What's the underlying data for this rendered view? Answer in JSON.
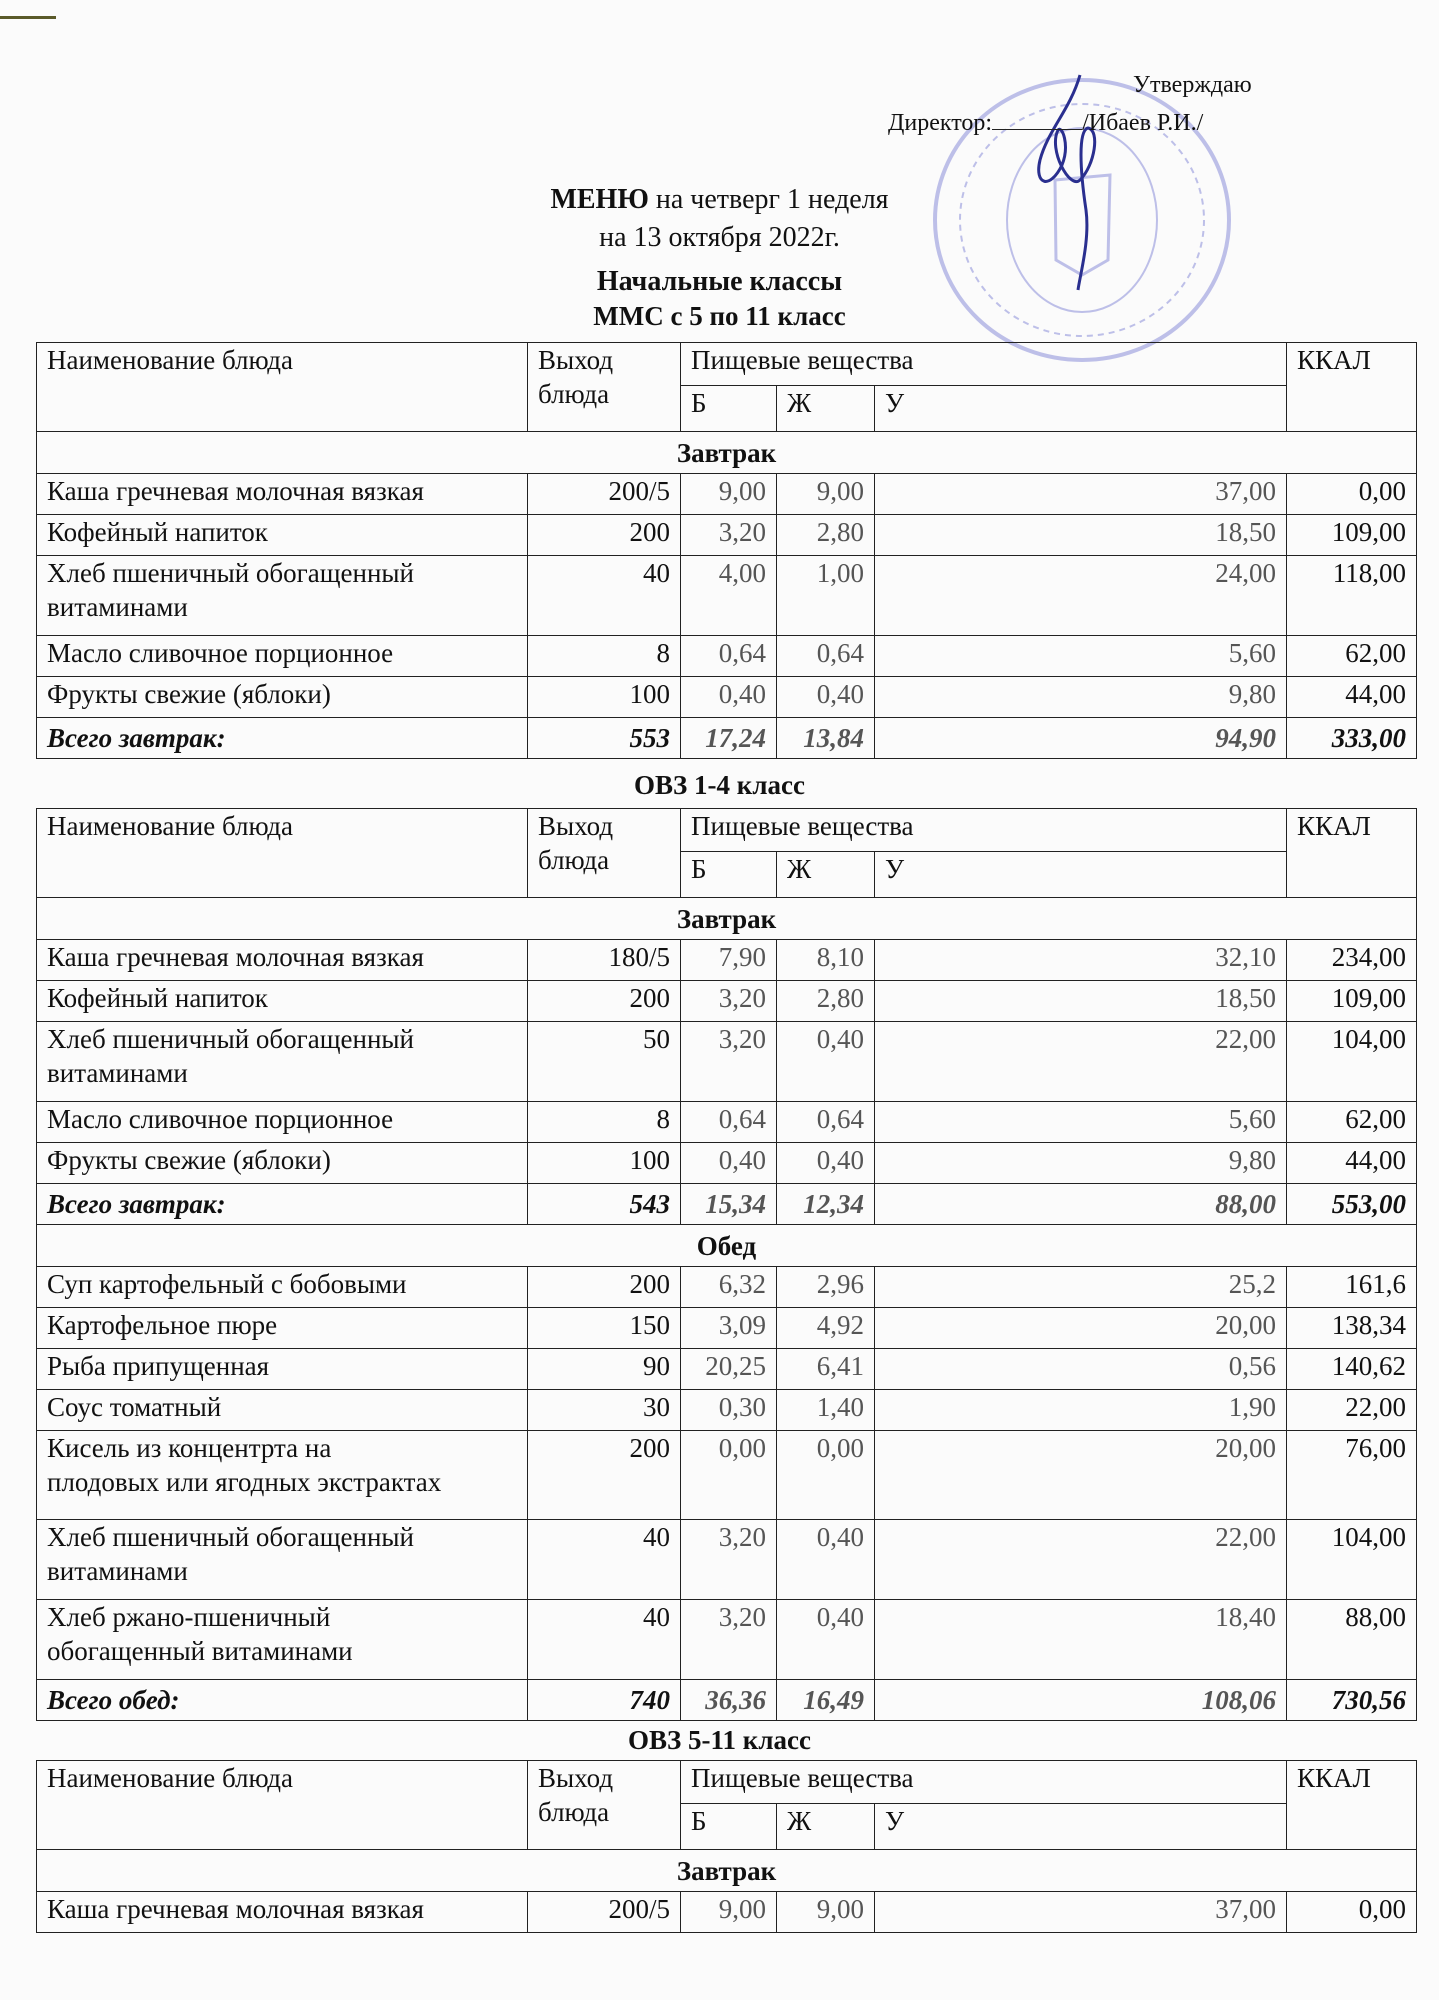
{
  "approval": {
    "approve_label": "Утверждаю",
    "director_label": "Директор:",
    "director_name": "/Ибаев Р.И./",
    "stamp_color": "#7b7fd0",
    "signature_color": "#2a2f8f"
  },
  "header": {
    "menu_bold": "МЕНЮ",
    "menu_rest": " на четверг 1 неделя",
    "date": "на 13 октября 2022г.",
    "group": "Начальные классы"
  },
  "columns": {
    "name": "Наименование блюда",
    "output": "Выход блюда",
    "nutrients": "Пищевые вещества",
    "b": "Б",
    "zh": "Ж",
    "u": "У",
    "kcal": "ККАЛ"
  },
  "sections": [
    {
      "title": "ММС с 5 по 11 класс",
      "meals": [
        {
          "label": "Завтрак",
          "rows": [
            {
              "name": "Каша гречневая молочная вязкая",
              "output": "200/5",
              "b": "9,00",
              "zh": "9,00",
              "u": "37,00",
              "kcal": "0,00"
            },
            {
              "name": "Кофейный напиток",
              "output": "200",
              "b": "3,20",
              "zh": "2,80",
              "u": "18,50",
              "kcal": "109,00"
            },
            {
              "name": "Хлеб пшеничный обогащенный\nвитаминами",
              "output": "40",
              "b": "4,00",
              "zh": "1,00",
              "u": "24,00",
              "kcal": "118,00"
            },
            {
              "name": "Масло сливочное порционное",
              "output": "8",
              "b": "0,64",
              "zh": "0,64",
              "u": "5,60",
              "kcal": "62,00"
            },
            {
              "name": "Фрукты свежие (яблоки)",
              "output": "100",
              "b": "0,40",
              "zh": "0,40",
              "u": "9,80",
              "kcal": "44,00"
            }
          ],
          "total": {
            "name": "Всего завтрак:",
            "output": "553",
            "b": "17,24",
            "zh": "13,84",
            "u": "94,90",
            "kcal": "333,00"
          }
        }
      ]
    },
    {
      "title": "ОВЗ 1-4 класс",
      "meals": [
        {
          "label": "Завтрак",
          "rows": [
            {
              "name": "Каша гречневая молочная вязкая",
              "output": "180/5",
              "b": "7,90",
              "zh": "8,10",
              "u": "32,10",
              "kcal": "234,00"
            },
            {
              "name": "Кофейный напиток",
              "output": "200",
              "b": "3,20",
              "zh": "2,80",
              "u": "18,50",
              "kcal": "109,00"
            },
            {
              "name": "Хлеб пшеничный обогащенный\nвитаминами",
              "output": "50",
              "b": "3,20",
              "zh": "0,40",
              "u": "22,00",
              "kcal": "104,00"
            },
            {
              "name": "Масло сливочное порционное",
              "output": "8",
              "b": "0,64",
              "zh": "0,64",
              "u": "5,60",
              "kcal": "62,00"
            },
            {
              "name": "Фрукты свежие (яблоки)",
              "output": "100",
              "b": "0,40",
              "zh": "0,40",
              "u": "9,80",
              "kcal": "44,00"
            }
          ],
          "total": {
            "name": "Всего завтрак:",
            "output": "543",
            "b": "15,34",
            "zh": "12,34",
            "u": "88,00",
            "kcal": "553,00"
          }
        },
        {
          "label": "Обед",
          "rows": [
            {
              "name": "Суп картофельный с бобовыми",
              "output": "200",
              "b": "6,32",
              "zh": "2,96",
              "u": "25,2",
              "kcal": "161,6"
            },
            {
              "name": "Картофельное пюре",
              "output": "150",
              "b": "3,09",
              "zh": "4,92",
              "u": "20,00",
              "kcal": "138,34"
            },
            {
              "name": "Рыба припущенная",
              "output": "90",
              "b": "20,25",
              "zh": "6,41",
              "u": "0,56",
              "kcal": "140,62"
            },
            {
              "name": "Соус томатный",
              "output": "30",
              "b": "0,30",
              "zh": "1,40",
              "u": "1,90",
              "kcal": "22,00"
            },
            {
              "name": "Кисель из концентрта на\nплодовых или ягодных экстрактах",
              "output": "200",
              "b": "0,00",
              "zh": "0,00",
              "u": "20,00",
              "kcal": "76,00"
            },
            {
              "name": "Хлеб пшеничный обогащенный\nвитаминами",
              "output": "40",
              "b": "3,20",
              "zh": "0,40",
              "u": "22,00",
              "kcal": "104,00"
            },
            {
              "name": "Хлеб ржано-пшеничный\nобогащенный витаминами",
              "output": "40",
              "b": "3,20",
              "zh": "0,40",
              "u": "18,40",
              "kcal": "88,00"
            }
          ],
          "total": {
            "name": "Всего обед:",
            "output": "740",
            "b": "36,36",
            "zh": "16,49",
            "u": "108,06",
            "kcal": "730,56"
          }
        }
      ]
    },
    {
      "title": "ОВЗ 5-11 класс",
      "meals": [
        {
          "label": "Завтрак",
          "rows": [
            {
              "name": "Каша гречневая молочная вязкая",
              "output": "200/5",
              "b": "9,00",
              "zh": "9,00",
              "u": "37,00",
              "kcal": "0,00"
            }
          ]
        }
      ]
    }
  ]
}
